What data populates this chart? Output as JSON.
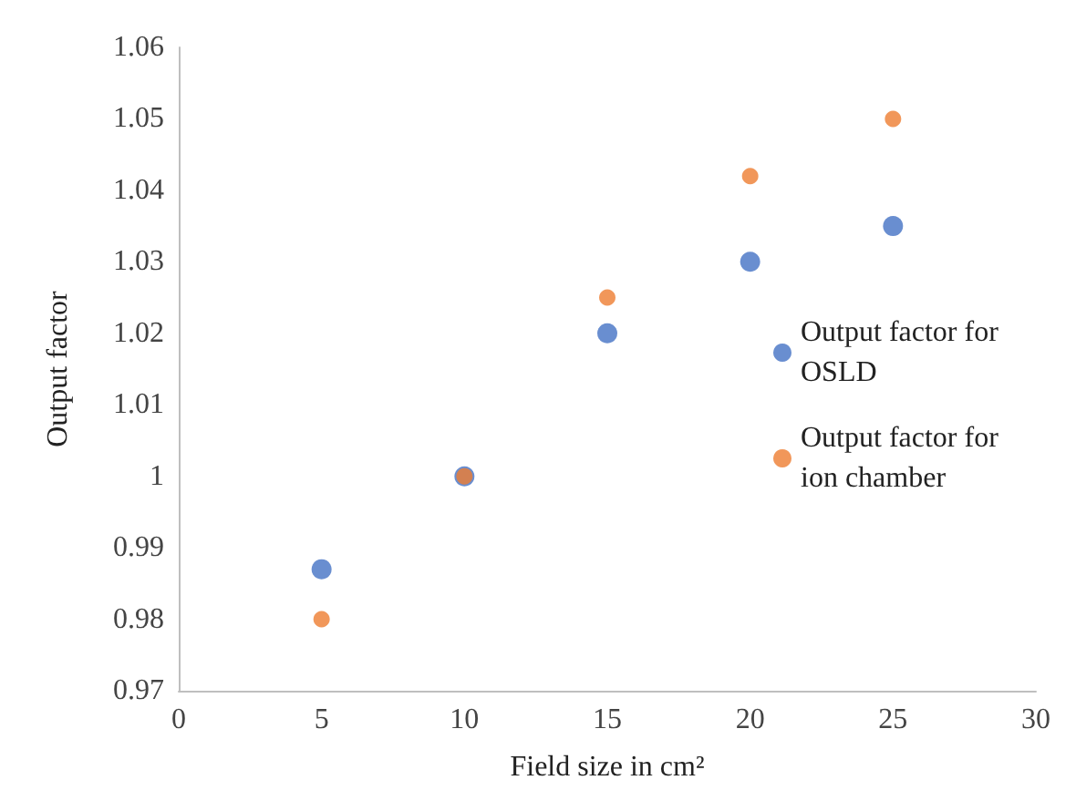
{
  "chart_data": {
    "type": "scatter",
    "xlabel": "Field size in cm²",
    "ylabel": "Output factor",
    "x": [
      5,
      10,
      15,
      20,
      25
    ],
    "series": [
      {
        "name": "Output factor for OSLD",
        "color": "#4472c4",
        "values": [
          0.987,
          1.0,
          1.02,
          1.03,
          1.035
        ]
      },
      {
        "name": "Output factor for ion chamber",
        "color": "#ed7d31",
        "values": [
          0.98,
          1.0,
          1.025,
          1.042,
          1.05
        ]
      }
    ],
    "xlim": [
      0,
      30
    ],
    "xticks": [
      0,
      5,
      10,
      15,
      20,
      25,
      30
    ],
    "ylim": [
      0.97,
      1.06
    ],
    "yticks": [
      0.97,
      0.98,
      0.99,
      1,
      1.01,
      1.02,
      1.03,
      1.04,
      1.05,
      1.06
    ],
    "grid": false,
    "legend": "right",
    "marker": "circle"
  }
}
